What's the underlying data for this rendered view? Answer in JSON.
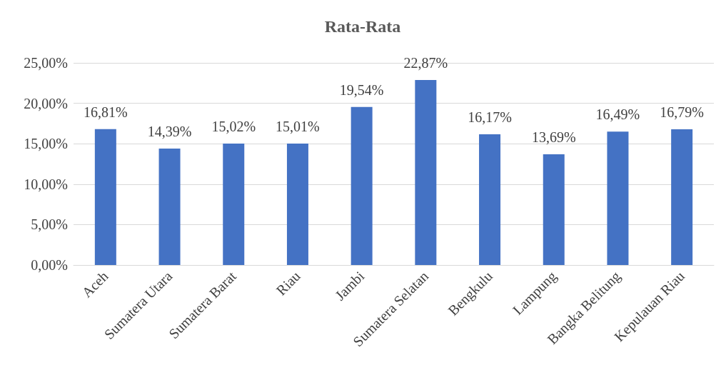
{
  "chart_data": {
    "type": "bar",
    "title": "Rata-Rata",
    "categories": [
      "Aceh",
      "Sumatera Utara",
      "Sumatera Barat",
      "Riau",
      "Jambi",
      "Sumatera Selatan",
      "Bengkulu",
      "Lampung",
      "Bangka Belitung",
      "Kepulauan Riau"
    ],
    "values": [
      16.81,
      14.39,
      15.02,
      15.01,
      19.54,
      22.87,
      16.17,
      13.69,
      16.49,
      16.79
    ],
    "value_labels": [
      "16,81%",
      "14,39%",
      "15,02%",
      "15,01%",
      "19,54%",
      "22,87%",
      "16,17%",
      "13,69%",
      "16,49%",
      "16,79%"
    ],
    "color": "#4472c4",
    "ylim": [
      0,
      25
    ],
    "yticks": [
      {
        "value": 0,
        "label": "0,00%"
      },
      {
        "value": 5,
        "label": "5,00%"
      },
      {
        "value": 10,
        "label": "10,00%"
      },
      {
        "value": 15,
        "label": "15,00%"
      },
      {
        "value": 20,
        "label": "20,00%"
      },
      {
        "value": 25,
        "label": "25,00%"
      }
    ],
    "grid": "y"
  }
}
